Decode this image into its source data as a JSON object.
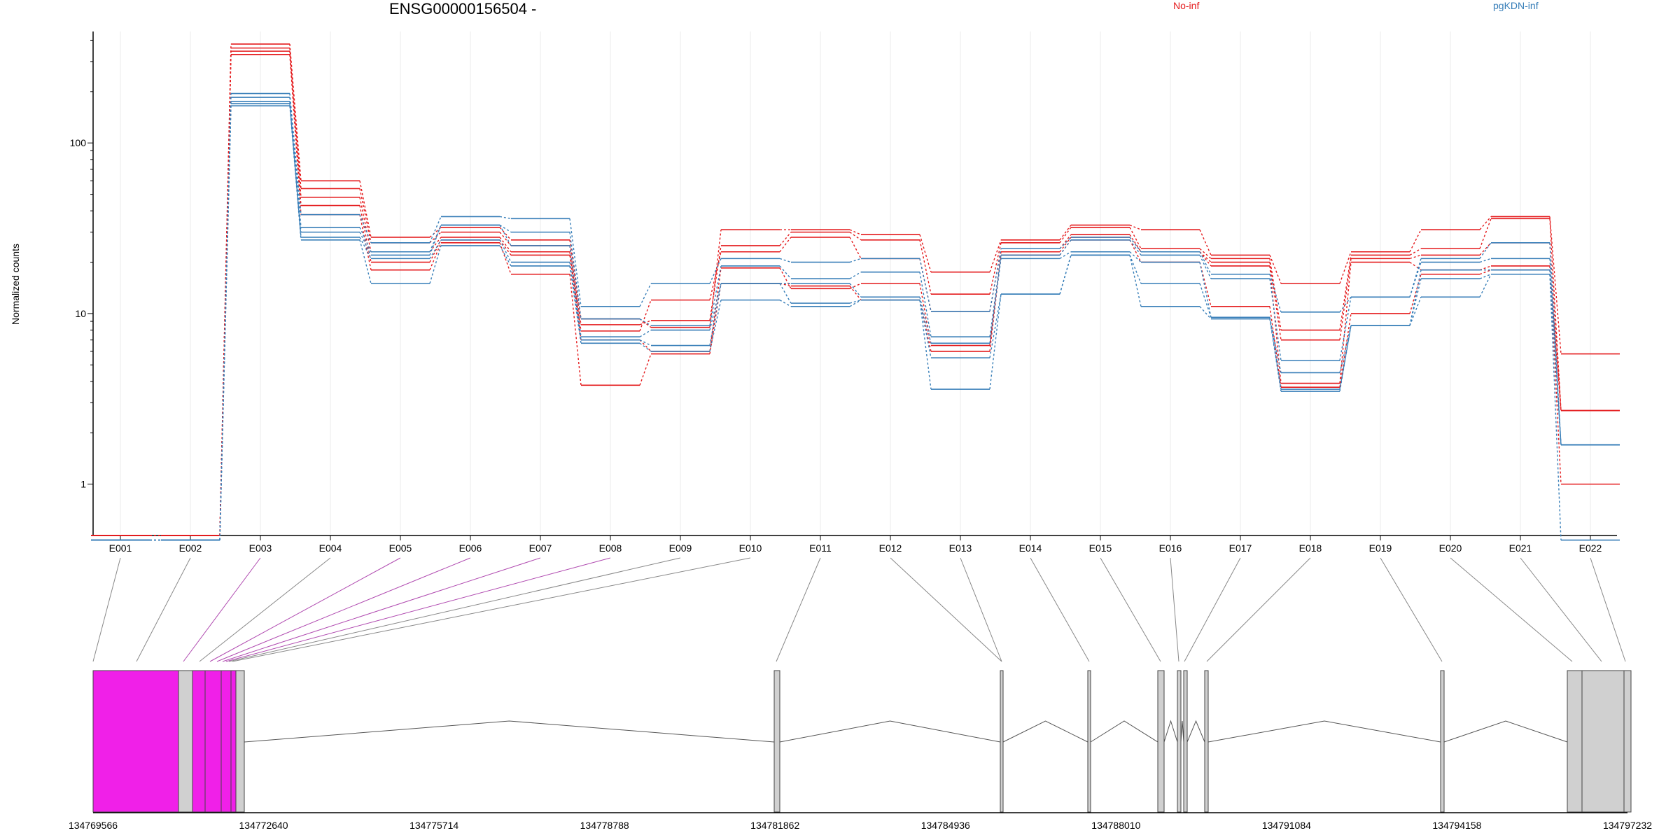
{
  "chart_data": {
    "type": "line",
    "title": "ENSG00000156504 -",
    "ylabel": "Normalized counts",
    "xlabel": "",
    "yscale": "log",
    "ylim": [
      0.5,
      450
    ],
    "yticks": [
      1,
      10,
      100
    ],
    "ytick_labels": [
      "1",
      "10",
      "100"
    ],
    "categories": [
      "E001",
      "E002",
      "E003",
      "E004",
      "E005",
      "E006",
      "E007",
      "E008",
      "E009",
      "E010",
      "E011",
      "E012",
      "E013",
      "E014",
      "E015",
      "E016",
      "E017",
      "E018",
      "E019",
      "E020",
      "E021",
      "E022"
    ],
    "series": [
      {
        "name": "No-inf",
        "color": "#e41a1c",
        "sample_values": [
          [
            0.5,
            0.5,
            380,
            60,
            28,
            32,
            27,
            9.3,
            8.3,
            31,
            31,
            29,
            17.5,
            27,
            33,
            31,
            22,
            15,
            23,
            31,
            37,
            5.8
          ],
          [
            0.5,
            0.5,
            360,
            54,
            26,
            30,
            25,
            8.6,
            9.1,
            25,
            30,
            27,
            13,
            26,
            32,
            24,
            21,
            8,
            22,
            24,
            36,
            2.7
          ],
          [
            0.5,
            0.5,
            345,
            48,
            23,
            28,
            23,
            7.9,
            12,
            23,
            28,
            21,
            10.3,
            24,
            29,
            23,
            20,
            7,
            21,
            22,
            26,
            2.7
          ],
          [
            0.5,
            0.5,
            330,
            43,
            20,
            27,
            22,
            7,
            6,
            18.5,
            14,
            15,
            6.5,
            23,
            28,
            23,
            19,
            3.9,
            20,
            18,
            19,
            1.0
          ],
          [
            0.5,
            0.5,
            330,
            38,
            18,
            26,
            17,
            3.8,
            5.8,
            15,
            14.5,
            12,
            6,
            22,
            27,
            20,
            11,
            3.7,
            10,
            17,
            18,
            2.7
          ]
        ]
      },
      {
        "name": "pgKDN-inf",
        "color": "#377eb8",
        "sample_values": [
          [
            0.47,
            0.47,
            195,
            38,
            26,
            37,
            36,
            11,
            15,
            21,
            20,
            21,
            10.3,
            24,
            28,
            23,
            17,
            10.2,
            12.5,
            21,
            26,
            1.7
          ],
          [
            0.47,
            0.47,
            185,
            32,
            23,
            33,
            30,
            9.3,
            8.5,
            19,
            16,
            17.5,
            7.3,
            22,
            27,
            22,
            16,
            5.3,
            12.5,
            20,
            21,
            1.7
          ],
          [
            0.47,
            0.47,
            175,
            30,
            22,
            33,
            25,
            7.3,
            8,
            15,
            15,
            12.5,
            6.7,
            21,
            23,
            20,
            9.5,
            4.5,
            8.5,
            18,
            18,
            1.7
          ],
          [
            0.47,
            0.47,
            170,
            28,
            21,
            27,
            20,
            7,
            6.5,
            15,
            11.5,
            12,
            5.5,
            13,
            22,
            15,
            9.5,
            3.6,
            8.5,
            16,
            17,
            1.7
          ],
          [
            0.47,
            0.47,
            165,
            27,
            15,
            25,
            19,
            6.7,
            6,
            12,
            11,
            12,
            3.6,
            13,
            22,
            11,
            9.3,
            3.5,
            8.5,
            12.5,
            17,
            0.47
          ]
        ]
      }
    ],
    "genomic_axis": {
      "ticks": [
        "134769566",
        "134772640",
        "134775714",
        "134778788",
        "134781862",
        "134784936",
        "134788010",
        "134791084",
        "134794158",
        "134797232"
      ],
      "range": [
        134769566,
        134797232
      ]
    }
  },
  "colors": {
    "noinf": "#e41a1c",
    "kdn": "#377eb8",
    "highlight_exon": "#f020e8",
    "exon": "#d0d0d0",
    "axis": "#000000",
    "grid": "#ebebeb"
  }
}
